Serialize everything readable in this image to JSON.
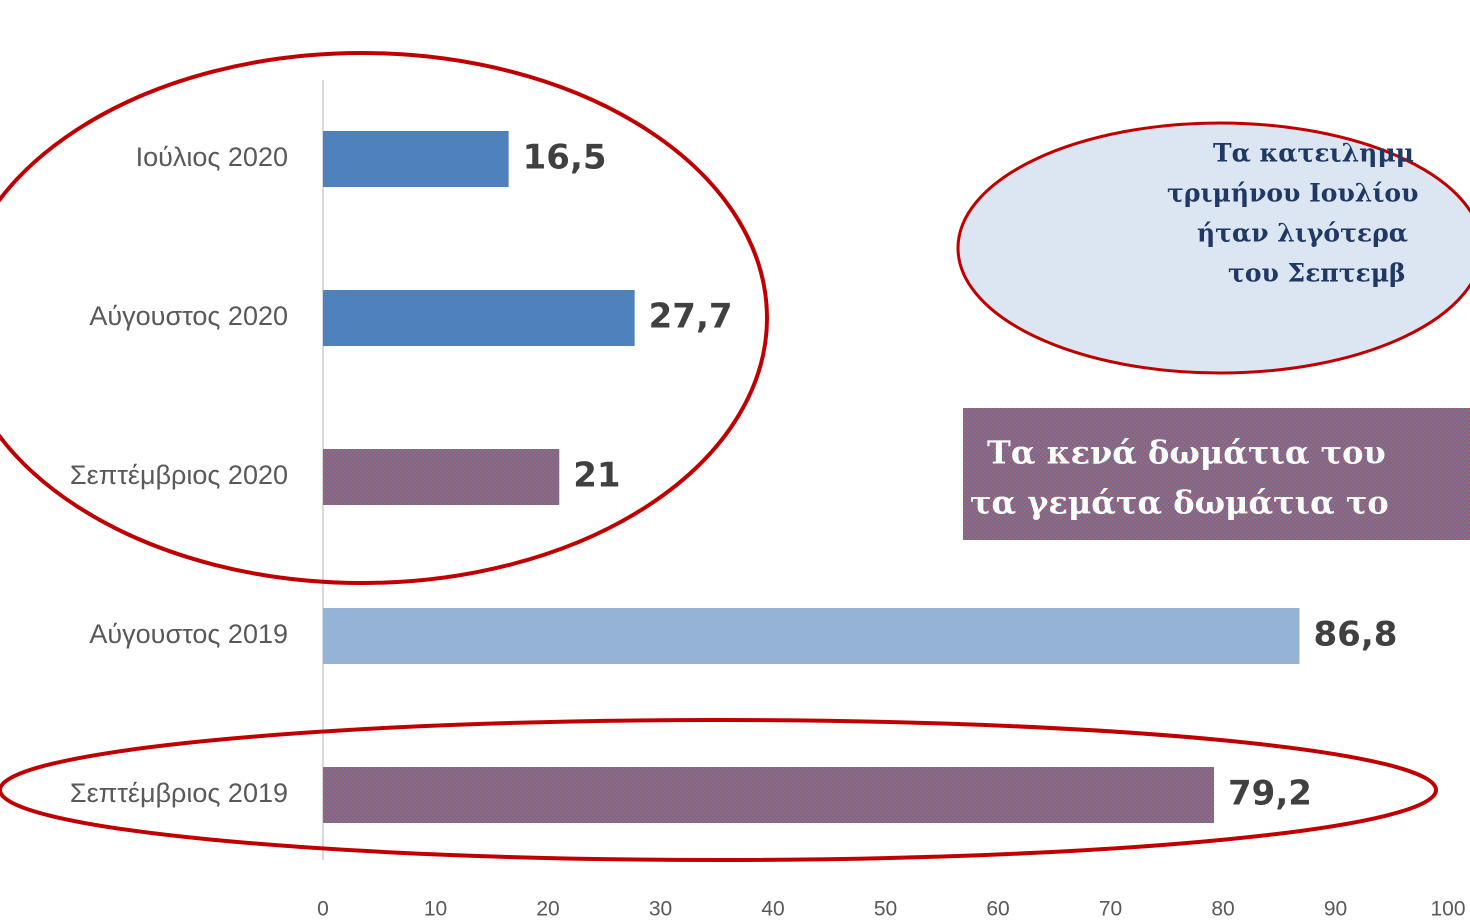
{
  "chart_data": {
    "type": "barh",
    "categories": [
      "Ιούλιος 2020",
      "Αύγουστος 2020",
      "Σεπτέμβριος 2020",
      "Αύγουστος 2019",
      "Σεπτέμβριος 2019"
    ],
    "values": [
      16.5,
      27.7,
      21,
      86.8,
      79.2
    ],
    "value_labels": [
      "16,5",
      "27,7",
      "21",
      "86,8",
      "79,2"
    ],
    "colors": [
      "#4f81bd",
      "#4f81bd",
      "#c0504d",
      "#95b3d7",
      "#c0504d"
    ],
    "patterned": [
      false,
      false,
      true,
      false,
      true
    ],
    "xlim": [
      0,
      100
    ],
    "xticks": [
      0,
      10,
      20,
      30,
      40,
      50,
      60,
      70,
      80,
      90,
      100
    ],
    "annotations": [
      {
        "lines": [
          "Τα κατειλημμ",
          "τριμήνου Ιουλίου",
          "ήταν λιγότερα",
          "του Σεπτεμβ"
        ]
      },
      {
        "lines": [
          "Τα κενά δωμάτια του",
          "τα γεμάτα δωμάτια το"
        ]
      }
    ]
  }
}
